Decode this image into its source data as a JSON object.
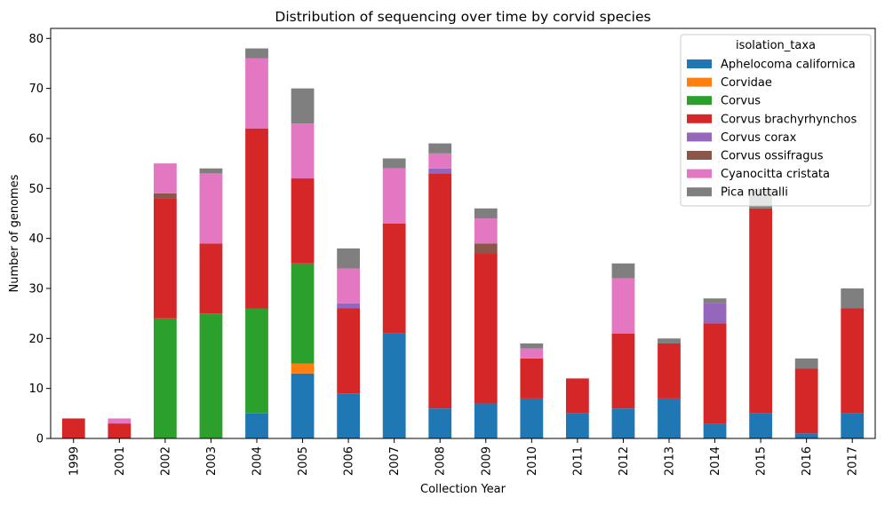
{
  "chart_data": {
    "type": "bar",
    "stacked": true,
    "title": "Distribution of sequencing over time by corvid species",
    "xlabel": "Collection Year",
    "ylabel": "Number of genomes",
    "ylim": [
      0,
      82
    ],
    "yticks": [
      0,
      10,
      20,
      30,
      40,
      50,
      60,
      70,
      80
    ],
    "grid": false,
    "legend_title": "isolation_taxa",
    "legend_position": "top-right",
    "categories": [
      "1999",
      "2001",
      "2002",
      "2003",
      "2004",
      "2005",
      "2006",
      "2007",
      "2008",
      "2009",
      "2010",
      "2011",
      "2012",
      "2013",
      "2014",
      "2015",
      "2016",
      "2017"
    ],
    "series": [
      {
        "name": "Aphelocoma californica",
        "color": "#1f77b4",
        "values": [
          0,
          0,
          0,
          0,
          5,
          13,
          9,
          21,
          6,
          7,
          8,
          5,
          6,
          8,
          3,
          5,
          1,
          5
        ]
      },
      {
        "name": "Corvidae",
        "color": "#ff7f0e",
        "values": [
          0,
          0,
          0,
          0,
          0,
          2,
          0,
          0,
          0,
          0,
          0,
          0,
          0,
          0,
          0,
          0,
          0,
          0
        ]
      },
      {
        "name": "Corvus",
        "color": "#2ca02c",
        "values": [
          0,
          0,
          24,
          25,
          21,
          20,
          0,
          0,
          0,
          0,
          0,
          0,
          0,
          0,
          0,
          0,
          0,
          0
        ]
      },
      {
        "name": "Corvus brachyrhynchos",
        "color": "#d62728",
        "values": [
          4,
          3,
          24,
          14,
          36,
          17,
          17,
          22,
          47,
          30,
          8,
          7,
          15,
          11,
          20,
          41,
          13,
          21
        ]
      },
      {
        "name": "Corvus corax",
        "color": "#9467bd",
        "values": [
          0,
          0,
          0,
          0,
          0,
          0,
          1,
          0,
          1,
          0,
          0,
          0,
          0,
          0,
          4,
          0,
          0,
          0
        ]
      },
      {
        "name": "Corvus ossifragus",
        "color": "#8c564b",
        "values": [
          0,
          0,
          1,
          0,
          0,
          0,
          0,
          0,
          0,
          2,
          0,
          0,
          0,
          0,
          0,
          0,
          0,
          0
        ]
      },
      {
        "name": "Cyanocitta cristata",
        "color": "#e377c2",
        "values": [
          0,
          1,
          6,
          14,
          14,
          11,
          7,
          11,
          3,
          5,
          2,
          0,
          11,
          0,
          0,
          0,
          0,
          0
        ]
      },
      {
        "name": "Pica nuttalli",
        "color": "#7f7f7f",
        "values": [
          0,
          0,
          0,
          1,
          2,
          7,
          4,
          2,
          2,
          2,
          1,
          0,
          3,
          1,
          1,
          4,
          2,
          4
        ]
      }
    ]
  }
}
